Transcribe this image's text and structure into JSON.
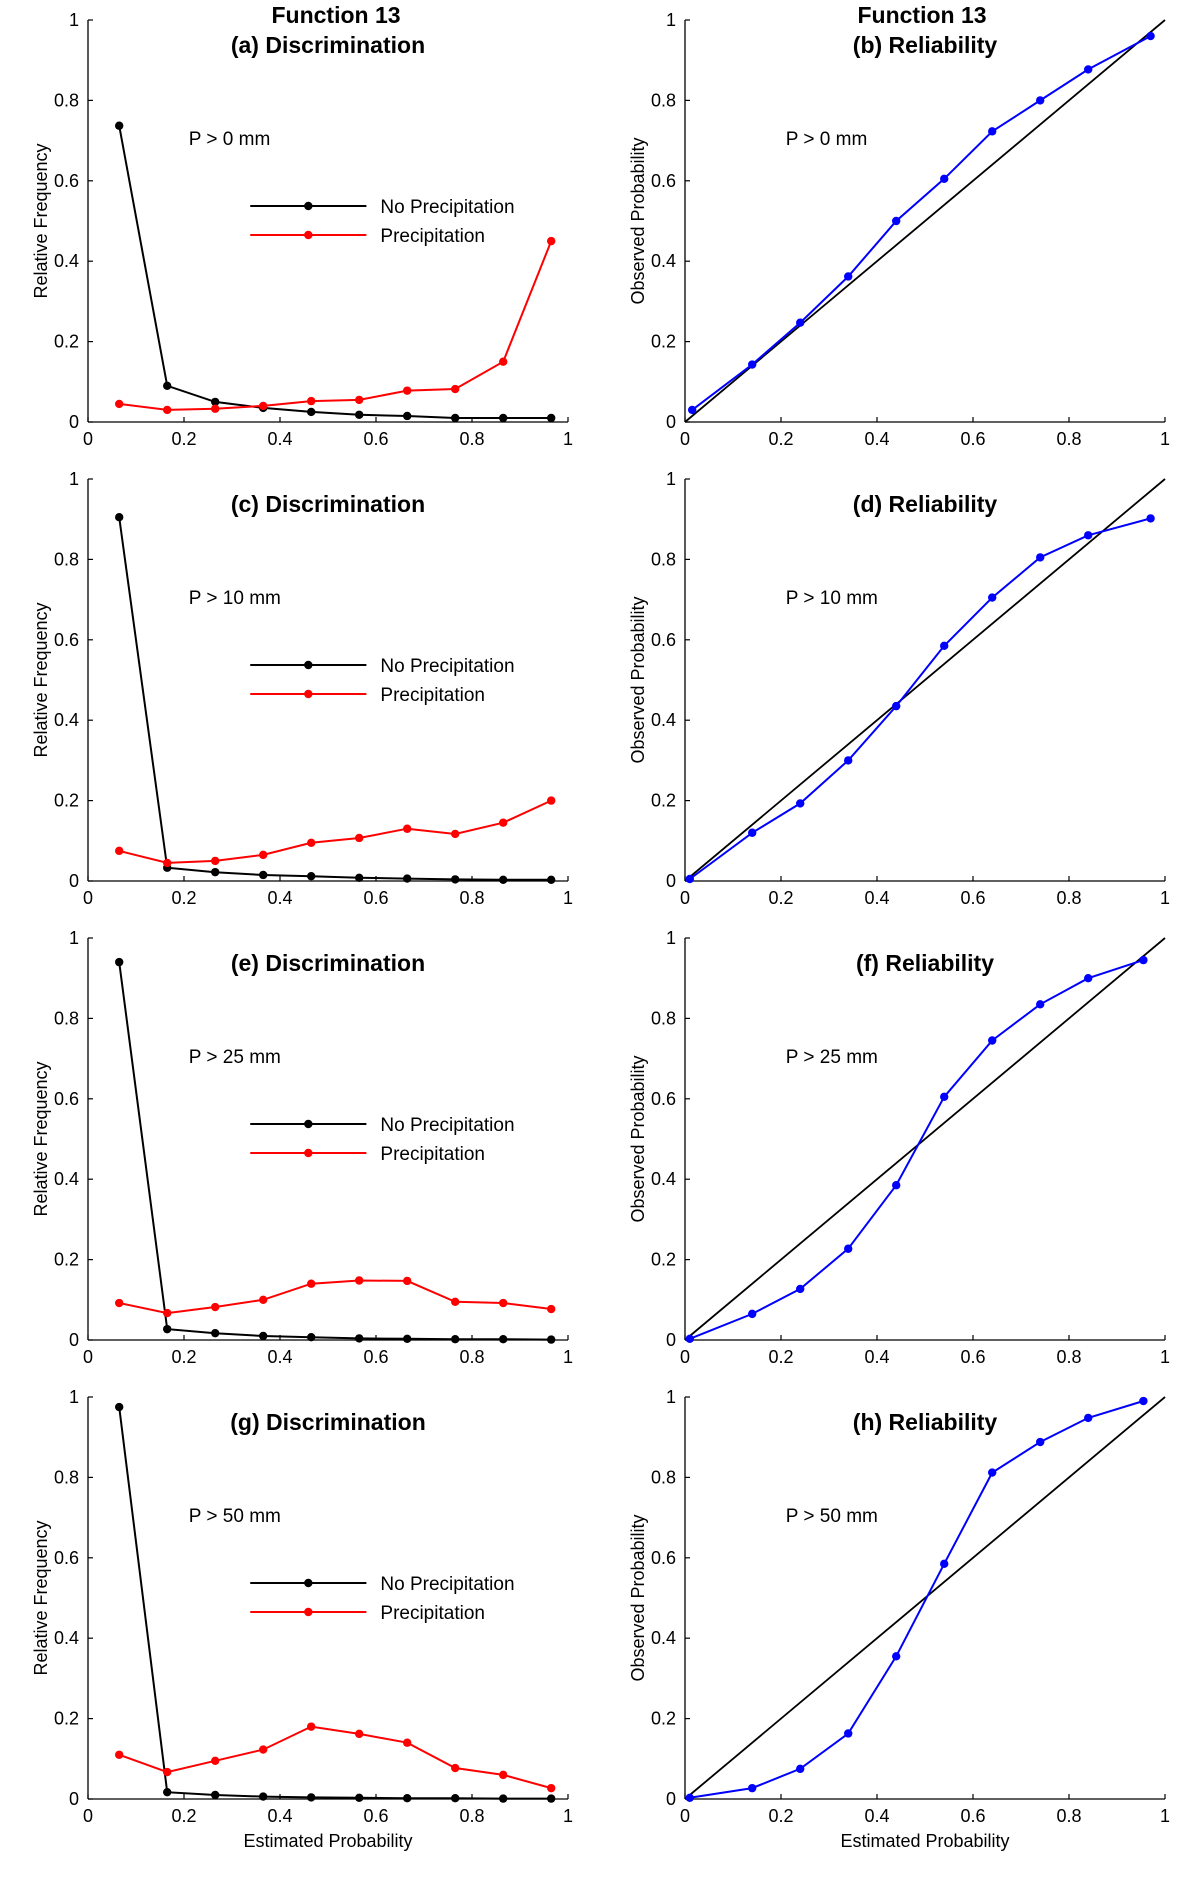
{
  "figure": {
    "suptitle_left": "Function 13",
    "suptitle_right": "Function 13"
  },
  "colors": {
    "no_precip": "#000000",
    "precip": "#ff0000",
    "reliability": "#0000ff",
    "diagonal": "#000000"
  },
  "chart_data": [
    {
      "type": "line",
      "title": "(a) Discrimination",
      "annotation": "P > 0 mm",
      "xlabel": "",
      "ylabel": "Relative Frequency",
      "xlim": [
        0,
        1
      ],
      "ylim": [
        0,
        1
      ],
      "xticks": [
        "0",
        "0.2",
        "0.4",
        "0.6",
        "0.8",
        "1"
      ],
      "yticks": [
        "0",
        "0.2",
        "0.4",
        "0.6",
        "0.8",
        "1"
      ],
      "legend": "center-right",
      "series": [
        {
          "name": "No Precipitation",
          "color_key": "no_precip",
          "x": [
            0.065,
            0.165,
            0.265,
            0.365,
            0.465,
            0.565,
            0.665,
            0.765,
            0.865,
            0.965
          ],
          "y": [
            0.737,
            0.09,
            0.05,
            0.035,
            0.025,
            0.018,
            0.015,
            0.01,
            0.01,
            0.01
          ]
        },
        {
          "name": "Precipitation",
          "color_key": "precip",
          "x": [
            0.065,
            0.165,
            0.265,
            0.365,
            0.465,
            0.565,
            0.665,
            0.765,
            0.865,
            0.965
          ],
          "y": [
            0.045,
            0.03,
            0.033,
            0.04,
            0.052,
            0.055,
            0.078,
            0.082,
            0.15,
            0.45
          ]
        }
      ]
    },
    {
      "type": "line",
      "title": "(b) Reliability",
      "annotation": "P > 0 mm",
      "xlabel": "",
      "ylabel": "Observed Probability",
      "xlim": [
        0,
        1
      ],
      "ylim": [
        0,
        1
      ],
      "xticks": [
        "0",
        "0.2",
        "0.4",
        "0.6",
        "0.8",
        "1"
      ],
      "yticks": [
        "0",
        "0.2",
        "0.4",
        "0.6",
        "0.8",
        "1"
      ],
      "diagonal": true,
      "series": [
        {
          "color_key": "reliability",
          "x": [
            0.015,
            0.14,
            0.24,
            0.34,
            0.44,
            0.54,
            0.64,
            0.74,
            0.84,
            0.97
          ],
          "y": [
            0.03,
            0.143,
            0.247,
            0.362,
            0.5,
            0.605,
            0.723,
            0.8,
            0.877,
            0.96
          ]
        }
      ]
    },
    {
      "type": "line",
      "title": "(c) Discrimination",
      "annotation": "P > 10 mm",
      "xlabel": "",
      "ylabel": "Relative Frequency",
      "xlim": [
        0,
        1
      ],
      "ylim": [
        0,
        1
      ],
      "xticks": [
        "0",
        "0.2",
        "0.4",
        "0.6",
        "0.8",
        "1"
      ],
      "yticks": [
        "0",
        "0.2",
        "0.4",
        "0.6",
        "0.8",
        "1"
      ],
      "legend": "center-right",
      "series": [
        {
          "name": "No Precipitation",
          "color_key": "no_precip",
          "x": [
            0.065,
            0.165,
            0.265,
            0.365,
            0.465,
            0.565,
            0.665,
            0.765,
            0.865,
            0.965
          ],
          "y": [
            0.905,
            0.033,
            0.022,
            0.015,
            0.012,
            0.008,
            0.006,
            0.004,
            0.003,
            0.003
          ]
        },
        {
          "name": "Precipitation",
          "color_key": "precip",
          "x": [
            0.065,
            0.165,
            0.265,
            0.365,
            0.465,
            0.565,
            0.665,
            0.765,
            0.865,
            0.965
          ],
          "y": [
            0.075,
            0.045,
            0.05,
            0.065,
            0.095,
            0.107,
            0.13,
            0.117,
            0.145,
            0.2
          ]
        }
      ]
    },
    {
      "type": "line",
      "title": "(d) Reliability",
      "annotation": "P > 10 mm",
      "xlabel": "",
      "ylabel": "Observed Probability",
      "xlim": [
        0,
        1
      ],
      "ylim": [
        0,
        1
      ],
      "xticks": [
        "0",
        "0.2",
        "0.4",
        "0.6",
        "0.8",
        "1"
      ],
      "yticks": [
        "0",
        "0.2",
        "0.4",
        "0.6",
        "0.8",
        "1"
      ],
      "diagonal": true,
      "series": [
        {
          "color_key": "reliability",
          "x": [
            0.01,
            0.14,
            0.24,
            0.34,
            0.44,
            0.54,
            0.64,
            0.74,
            0.84,
            0.97
          ],
          "y": [
            0.005,
            0.12,
            0.193,
            0.3,
            0.435,
            0.585,
            0.705,
            0.805,
            0.86,
            0.902
          ]
        }
      ]
    },
    {
      "type": "line",
      "title": "(e) Discrimination",
      "annotation": "P > 25 mm",
      "xlabel": "",
      "ylabel": "Relative Frequency",
      "xlim": [
        0,
        1
      ],
      "ylim": [
        0,
        1
      ],
      "xticks": [
        "0",
        "0.2",
        "0.4",
        "0.6",
        "0.8",
        "1"
      ],
      "yticks": [
        "0",
        "0.2",
        "0.4",
        "0.6",
        "0.8",
        "1"
      ],
      "legend": "center-right",
      "series": [
        {
          "name": "No Precipitation",
          "color_key": "no_precip",
          "x": [
            0.065,
            0.165,
            0.265,
            0.365,
            0.465,
            0.565,
            0.665,
            0.765,
            0.865,
            0.965
          ],
          "y": [
            0.94,
            0.027,
            0.017,
            0.01,
            0.007,
            0.004,
            0.003,
            0.002,
            0.002,
            0.001
          ]
        },
        {
          "name": "Precipitation",
          "color_key": "precip",
          "x": [
            0.065,
            0.165,
            0.265,
            0.365,
            0.465,
            0.565,
            0.665,
            0.765,
            0.865,
            0.965
          ],
          "y": [
            0.092,
            0.067,
            0.082,
            0.1,
            0.14,
            0.148,
            0.147,
            0.095,
            0.092,
            0.077
          ]
        }
      ]
    },
    {
      "type": "line",
      "title": "(f) Reliability",
      "annotation": "P > 25 mm",
      "xlabel": "",
      "ylabel": "Observed Probability",
      "xlim": [
        0,
        1
      ],
      "ylim": [
        0,
        1
      ],
      "xticks": [
        "0",
        "0.2",
        "0.4",
        "0.6",
        "0.8",
        "1"
      ],
      "yticks": [
        "0",
        "0.2",
        "0.4",
        "0.6",
        "0.8",
        "1"
      ],
      "diagonal": true,
      "series": [
        {
          "color_key": "reliability",
          "x": [
            0.01,
            0.14,
            0.24,
            0.34,
            0.44,
            0.54,
            0.64,
            0.74,
            0.84,
            0.955
          ],
          "y": [
            0.003,
            0.065,
            0.127,
            0.227,
            0.385,
            0.605,
            0.745,
            0.835,
            0.9,
            0.945
          ]
        }
      ]
    },
    {
      "type": "line",
      "title": "(g) Discrimination",
      "annotation": "P > 50 mm",
      "xlabel": "Estimated Probability",
      "ylabel": "Relative Frequency",
      "xlim": [
        0,
        1
      ],
      "ylim": [
        0,
        1
      ],
      "xticks": [
        "0",
        "0.2",
        "0.4",
        "0.6",
        "0.8",
        "1"
      ],
      "yticks": [
        "0",
        "0.2",
        "0.4",
        "0.6",
        "0.8",
        "1"
      ],
      "legend": "center-right",
      "series": [
        {
          "name": "No Precipitation",
          "color_key": "no_precip",
          "x": [
            0.065,
            0.165,
            0.265,
            0.365,
            0.465,
            0.565,
            0.665,
            0.765,
            0.865,
            0.965
          ],
          "y": [
            0.975,
            0.017,
            0.01,
            0.006,
            0.004,
            0.003,
            0.002,
            0.002,
            0.001,
            0.001
          ]
        },
        {
          "name": "Precipitation",
          "color_key": "precip",
          "x": [
            0.065,
            0.165,
            0.265,
            0.365,
            0.465,
            0.565,
            0.665,
            0.765,
            0.865,
            0.965
          ],
          "y": [
            0.11,
            0.067,
            0.095,
            0.123,
            0.18,
            0.162,
            0.14,
            0.077,
            0.06,
            0.027
          ]
        }
      ]
    },
    {
      "type": "line",
      "title": "(h) Reliability",
      "annotation": "P > 50 mm",
      "xlabel": "Estimated Probability",
      "ylabel": "Observed Probability",
      "xlim": [
        0,
        1
      ],
      "ylim": [
        0,
        1
      ],
      "xticks": [
        "0",
        "0.2",
        "0.4",
        "0.6",
        "0.8",
        "1"
      ],
      "yticks": [
        "0",
        "0.2",
        "0.4",
        "0.6",
        "0.8",
        "1"
      ],
      "diagonal": true,
      "series": [
        {
          "color_key": "reliability",
          "x": [
            0.01,
            0.14,
            0.24,
            0.34,
            0.44,
            0.54,
            0.64,
            0.74,
            0.84,
            0.955
          ],
          "y": [
            0.003,
            0.027,
            0.075,
            0.163,
            0.355,
            0.585,
            0.812,
            0.888,
            0.948,
            0.99
          ]
        }
      ]
    }
  ]
}
